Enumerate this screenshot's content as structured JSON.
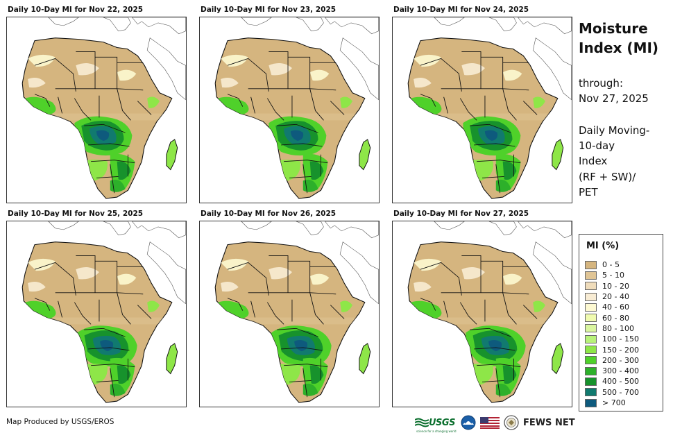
{
  "panels": [
    {
      "title": "Daily 10-Day MI for Nov 22, 2025",
      "variant": 0
    },
    {
      "title": "Daily 10-Day MI for Nov 23, 2025",
      "variant": 1
    },
    {
      "title": "Daily 10-Day MI for Nov 24, 2025",
      "variant": 2
    },
    {
      "title": "Daily 10-Day MI for Nov 25, 2025",
      "variant": 3
    },
    {
      "title": "Daily 10-Day MI for Nov 26, 2025",
      "variant": 4
    },
    {
      "title": "Daily 10-Day MI for Nov 27, 2025",
      "variant": 5
    }
  ],
  "side": {
    "title_line1": "Moisture",
    "title_line2": "Index (MI)",
    "through_label": "through:",
    "through_date": "Nov 27, 2025",
    "desc_line1": "Daily Moving-",
    "desc_line2": "10-day",
    "desc_line3": "Index",
    "formula_line1": "(RF + SW)/",
    "formula_line2": "PET"
  },
  "legend": {
    "title": "MI (%)",
    "items": [
      {
        "label": "0 - 5",
        "color": "#d5b57f"
      },
      {
        "label": "5 - 10",
        "color": "#e0c596"
      },
      {
        "label": "10 - 20",
        "color": "#efdcbb"
      },
      {
        "label": "20 - 40",
        "color": "#f8ecd4"
      },
      {
        "label": "40 - 60",
        "color": "#fdf9d2"
      },
      {
        "label": "60 - 80",
        "color": "#f0fbb0"
      },
      {
        "label": "80 - 100",
        "color": "#daf6a0"
      },
      {
        "label": "100 - 150",
        "color": "#b8f27a"
      },
      {
        "label": "150 - 200",
        "color": "#8ee648"
      },
      {
        "label": "200 - 300",
        "color": "#4fd12a"
      },
      {
        "label": "300 - 400",
        "color": "#2db02a"
      },
      {
        "label": "400 - 500",
        "color": "#17922c"
      },
      {
        "label": "500 - 700",
        "color": "#117a6f"
      },
      {
        "label": "> 700",
        "color": "#0e5a7d"
      }
    ]
  },
  "footer": {
    "credit": "Map Produced by USGS/EROS",
    "usgs": "USGS",
    "usgs_tagline": "science for a changing world",
    "fews": "FEWS NET"
  },
  "icons": [
    "usgs-logo-icon",
    "noaa-logo-icon",
    "us-flag-icon",
    "state-department-seal-icon"
  ]
}
